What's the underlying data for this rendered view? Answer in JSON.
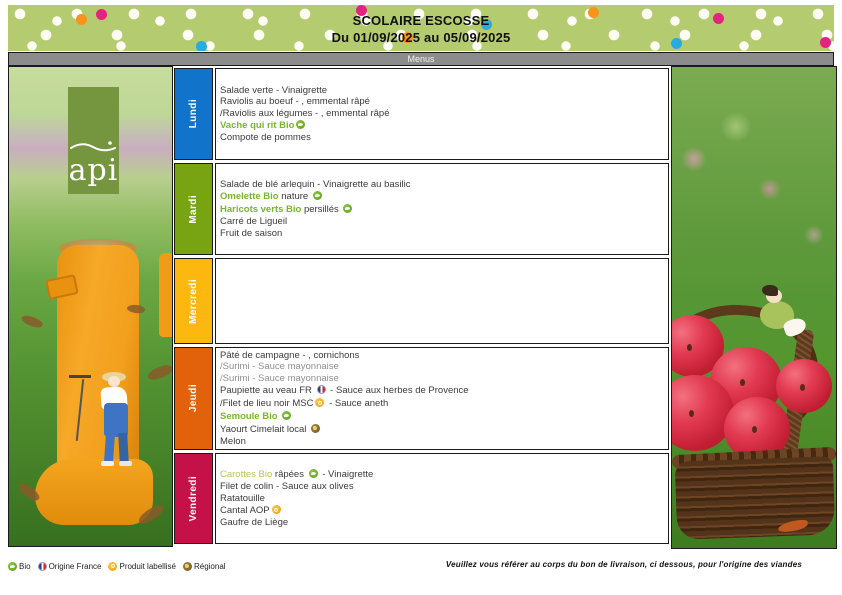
{
  "header": {
    "title": "SCOLAIRE ESCOSSE",
    "date_range": "Du 01/09/2025 au 05/09/2025"
  },
  "logo_text": "api",
  "menus_header": "Menus",
  "colors": {
    "band_green": "#b5cb70",
    "lundi_blue": "#1173c9",
    "mardi_green": "#78a414",
    "mercredi_yellow": "#fdb810",
    "jeudi_orange": "#e2610b",
    "vendredi_red": "#c41148",
    "bio_green": "#76b82a",
    "dot_pink": "#e3237f",
    "dot_blue": "#29abe2",
    "dot_orange": "#f7941d"
  },
  "days": [
    {
      "label": "Lundi",
      "color": "#1173c9",
      "lines": [
        [
          {
            "t": "Salade verte - Vinaigrette"
          }
        ],
        [
          {
            "t": "Raviolis au boeuf - , emmental râpé"
          }
        ],
        [
          {
            "t": "/Raviolis aux légumes - , emmental râpé"
          }
        ],
        [
          {
            "t": "Vache qui rit Bio",
            "s": "bio"
          },
          {
            "icon": "bio-icon"
          }
        ],
        [
          {
            "t": "Compote de pommes"
          }
        ]
      ]
    },
    {
      "label": "Mardi",
      "color": "#78a414",
      "lines": [
        [
          {
            "t": "Salade de blé arlequin - Vinaigrette au basilic"
          }
        ],
        [
          {
            "t": "Omelette Bio",
            "s": "bio"
          },
          {
            "t": " nature "
          },
          {
            "icon": "bio-icon"
          }
        ],
        [
          {
            "t": "Haricots verts Bio",
            "s": "bio"
          },
          {
            "t": " persillés "
          },
          {
            "icon": "bio-icon"
          }
        ],
        [
          {
            "t": "Carré de Ligueil"
          }
        ],
        [
          {
            "t": "Fruit de saison"
          }
        ]
      ]
    },
    {
      "label": "Mercredi",
      "color": "#fdb810",
      "lines": []
    },
    {
      "label": "Jeudi",
      "color": "#e2610b",
      "lines": [
        [
          {
            "t": "Pâté de campagne - , cornichons"
          }
        ],
        [
          {
            "t": "/Surimi - Sauce mayonnaise",
            "s": "gray"
          }
        ],
        [
          {
            "t": "/Surimi - Sauce mayonnaise",
            "s": "gray"
          }
        ],
        [
          {
            "t": "Paupiette au veau FR "
          },
          {
            "icon": "fr-icon"
          },
          {
            "t": " - Sauce aux herbes de Provence"
          }
        ],
        [
          {
            "t": "/Filet de lieu noir MSC"
          },
          {
            "icon": "label-icon"
          },
          {
            "t": " - Sauce aneth"
          }
        ],
        [
          {
            "t": "Semoule Bio ",
            "s": "bio"
          },
          {
            "icon": "bio-icon"
          }
        ],
        [
          {
            "t": "Yaourt Cimelait local "
          },
          {
            "icon": "regional-icon"
          }
        ],
        [
          {
            "t": "Melon"
          }
        ]
      ]
    },
    {
      "label": "Vendredi",
      "color": "#c41148",
      "lines": [
        [
          {
            "t": "Carottes Bio",
            "s": "bio-light"
          },
          {
            "t": " râpées "
          },
          {
            "icon": "bio-icon"
          },
          {
            "t": " - Vinaigrette"
          }
        ],
        [
          {
            "t": "Filet de colin - Sauce aux olives"
          }
        ],
        [
          {
            "t": "Ratatouille"
          }
        ],
        [
          {
            "t": "Cantal AOP"
          },
          {
            "icon": "label-icon"
          }
        ],
        [
          {
            "t": "Gaufre de Liège"
          }
        ]
      ]
    }
  ],
  "legend": [
    {
      "icon": "bio-icon",
      "label": "Bio"
    },
    {
      "icon": "fr-icon",
      "label": "Origine France"
    },
    {
      "icon": "label-icon",
      "label": "Produit labellisé"
    },
    {
      "icon": "regional-icon",
      "label": "Régional"
    }
  ],
  "footer_note": "Veuillez vous référer au corps du bon de livraison, ci dessous, pour l'origine des viandes"
}
